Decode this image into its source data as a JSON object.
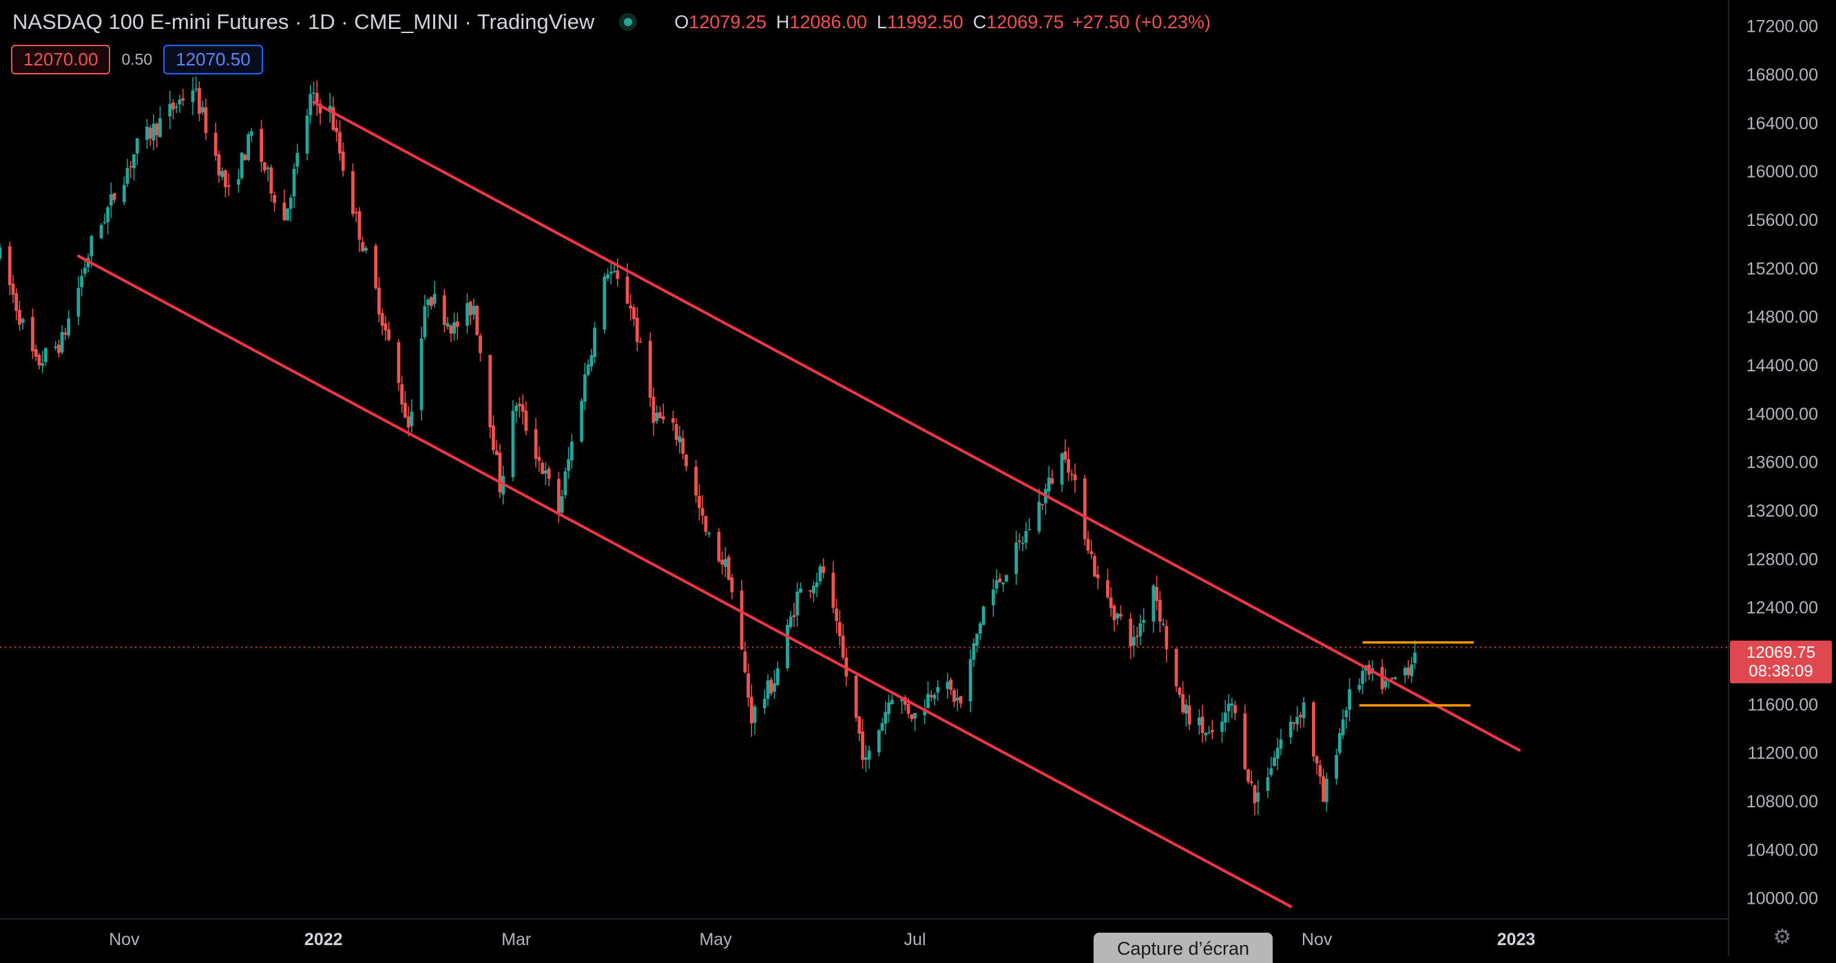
{
  "header": {
    "title": "NASDAQ 100 E-mini Futures · 1D · CME_MINI · TradingView",
    "market_status_icon": "market-open-dot-icon",
    "ohlc": [
      {
        "key": "O",
        "value": "12079.25"
      },
      {
        "key": "H",
        "value": "12086.00"
      },
      {
        "key": "L",
        "value": "11992.50"
      },
      {
        "key": "C",
        "value": "12069.75"
      }
    ],
    "change": "+27.50 (+0.23%)"
  },
  "quote": {
    "sell": "12070.00",
    "spread": "0.50",
    "buy": "12070.50"
  },
  "last_price": {
    "price": "12069.75",
    "countdown": "08:38:09"
  },
  "capture_label": "Capture d’écran",
  "settings_icon": "gear-icon",
  "colors": {
    "up": "#26a69a",
    "down": "#ef5350",
    "channel": "#f23645",
    "level": "#ff9800",
    "axis_text": "#b2b5be"
  },
  "chart_data": {
    "type": "candlestick",
    "y_ticks": [
      "17200.00",
      "16800.00",
      "16400.00",
      "16000.00",
      "15600.00",
      "15200.00",
      "14800.00",
      "14400.00",
      "14000.00",
      "13600.00",
      "13200.00",
      "12800.00",
      "12400.00",
      "11600.00",
      "11200.00",
      "10800.00",
      "10400.00",
      "10000.00"
    ],
    "y_range": [
      9850,
      17300
    ],
    "x_ticks": [
      {
        "label": "Nov",
        "date": "2021-11-01"
      },
      {
        "label": "2022",
        "date": "2022-01-01",
        "bold": true
      },
      {
        "label": "Mar",
        "date": "2022-03-01"
      },
      {
        "label": "May",
        "date": "2022-05-01"
      },
      {
        "label": "Jul",
        "date": "2022-07-01"
      },
      {
        "label": "Nov",
        "date": "2022-11-01"
      },
      {
        "label": "2023",
        "date": "2023-01-01",
        "bold": true
      }
    ],
    "x_range": [
      "2021-09-24",
      "2023-03-07"
    ],
    "last_price": 12069.75,
    "channel_lines": [
      {
        "from": [
          "2021-10-18",
          15300
        ],
        "to": [
          "2022-10-24",
          9930
        ]
      },
      {
        "from": [
          "2021-12-29",
          16570
        ],
        "to": [
          "2023-01-02",
          11220
        ]
      }
    ],
    "levels": [
      {
        "from": "2022-11-15",
        "to": "2022-12-19",
        "price": 12110
      },
      {
        "from": "2022-11-14",
        "to": "2022-12-18",
        "price": 11590
      }
    ],
    "path": [
      [
        "2021-09-24",
        15300
      ],
      [
        "2021-10-05",
        14400
      ],
      [
        "2021-10-13",
        14600
      ],
      [
        "2021-10-22",
        15400
      ],
      [
        "2021-11-05",
        16200
      ],
      [
        "2021-11-22",
        16700
      ],
      [
        "2021-12-03",
        15800
      ],
      [
        "2021-12-10",
        16300
      ],
      [
        "2021-12-20",
        15600
      ],
      [
        "2021-12-28",
        16600
      ],
      [
        "2022-01-03",
        16500
      ],
      [
        "2022-01-10",
        15700
      ],
      [
        "2022-01-18",
        14900
      ],
      [
        "2022-01-27",
        13900
      ],
      [
        "2022-02-02",
        15000
      ],
      [
        "2022-02-10",
        14700
      ],
      [
        "2022-02-16",
        14900
      ],
      [
        "2022-02-24",
        13400
      ],
      [
        "2022-03-01",
        14100
      ],
      [
        "2022-03-14",
        13200
      ],
      [
        "2022-03-22",
        14300
      ],
      [
        "2022-03-29",
        15200
      ],
      [
        "2022-04-05",
        14900
      ],
      [
        "2022-04-12",
        14000
      ],
      [
        "2022-04-20",
        13800
      ],
      [
        "2022-04-28",
        13000
      ],
      [
        "2022-05-05",
        12700
      ],
      [
        "2022-05-12",
        11500
      ],
      [
        "2022-05-19",
        11800
      ],
      [
        "2022-05-26",
        12500
      ],
      [
        "2022-06-03",
        12700
      ],
      [
        "2022-06-16",
        11100
      ],
      [
        "2022-06-24",
        11700
      ],
      [
        "2022-07-01",
        11500
      ],
      [
        "2022-07-08",
        11800
      ],
      [
        "2022-07-15",
        11600
      ],
      [
        "2022-07-22",
        12400
      ],
      [
        "2022-08-02",
        12900
      ],
      [
        "2022-08-16",
        13700
      ],
      [
        "2022-08-26",
        12600
      ],
      [
        "2022-09-06",
        12100
      ],
      [
        "2022-09-12",
        12600
      ],
      [
        "2022-09-20",
        11600
      ],
      [
        "2022-09-30",
        11300
      ],
      [
        "2022-10-06",
        11600
      ],
      [
        "2022-10-13",
        10800
      ],
      [
        "2022-10-21",
        11300
      ],
      [
        "2022-10-28",
        11600
      ],
      [
        "2022-11-03",
        10800
      ],
      [
        "2022-11-10",
        11600
      ],
      [
        "2022-11-15",
        11850
      ],
      [
        "2022-11-23",
        11750
      ],
      [
        "2022-11-30",
        11950
      ],
      [
        "2022-12-01",
        12080
      ]
    ]
  }
}
